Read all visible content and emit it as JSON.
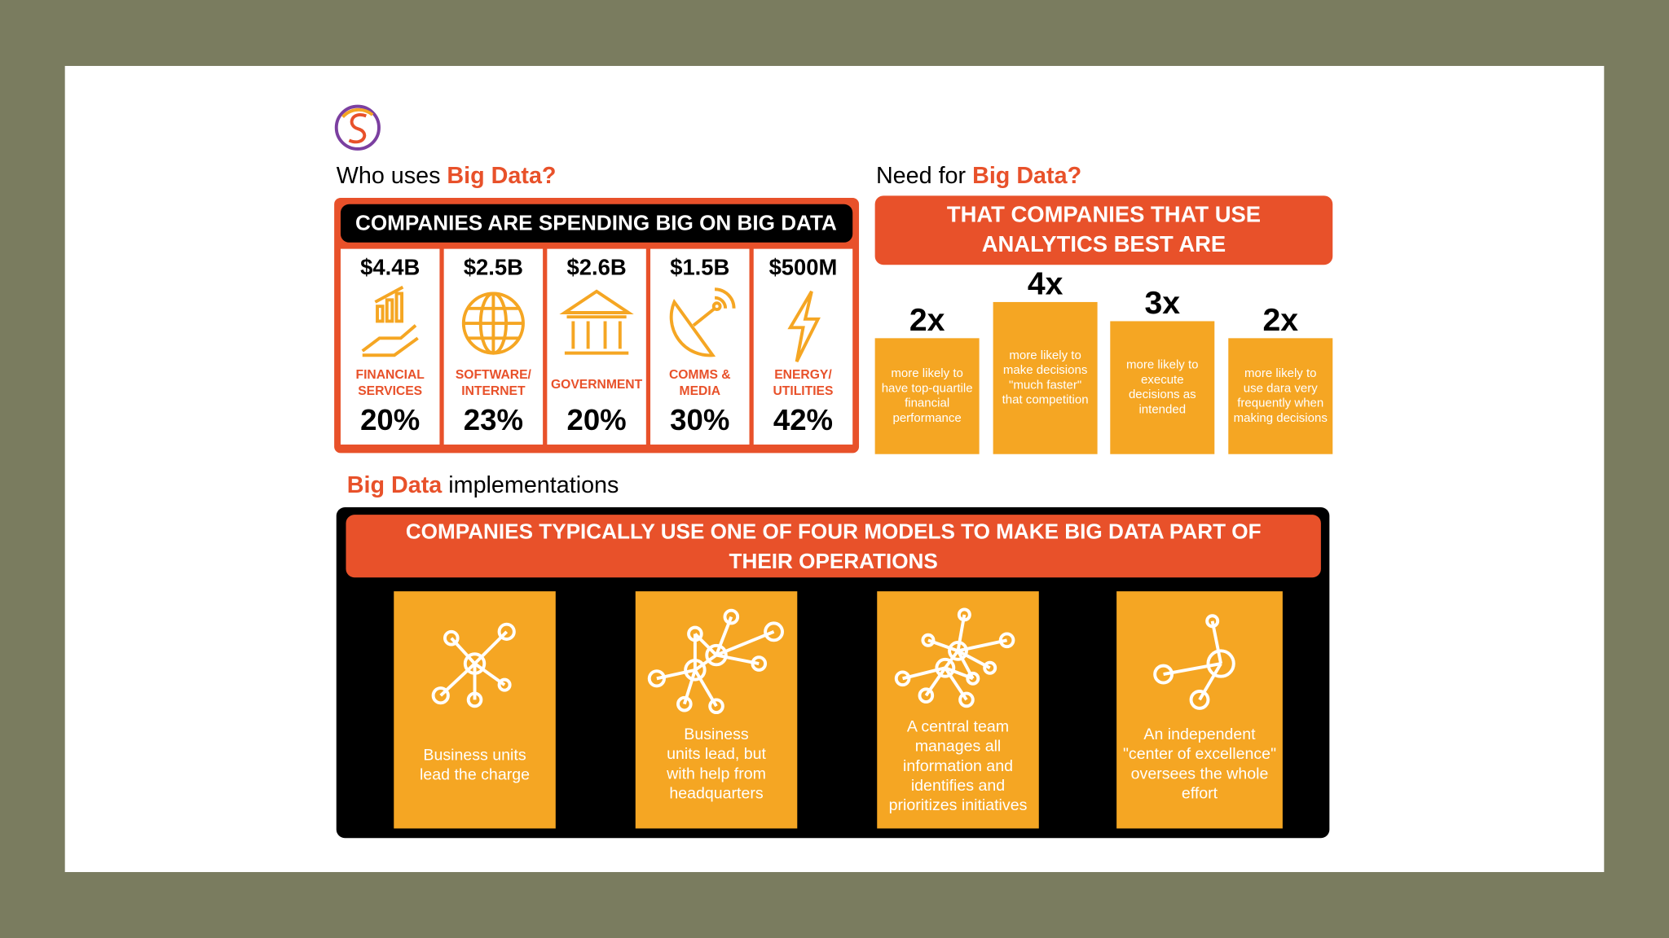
{
  "section1": {
    "heading_prefix": "Who uses",
    "heading_highlight": "Big Data?",
    "banner": "COMPANIES ARE SPENDING BIG ON BIG DATA",
    "sectors": [
      {
        "amount": "$4.4B",
        "name": [
          "FINANCIAL",
          "SERVICES"
        ],
        "share": "20%"
      },
      {
        "amount": "$2.5B",
        "name": [
          "SOFTWARE/",
          "INTERNET"
        ],
        "share": "23%"
      },
      {
        "amount": "$2.6B",
        "name": [
          "GOVERNMENT"
        ],
        "share": "20%"
      },
      {
        "amount": "$1.5B",
        "name": [
          "COMMS &",
          "MEDIA"
        ],
        "share": "30%"
      },
      {
        "amount": "$500M",
        "name": [
          "ENERGY/",
          "UTILITIES"
        ],
        "share": "42%"
      }
    ]
  },
  "section2": {
    "heading_prefix": "Need for",
    "heading_highlight": "Big Data?",
    "banner": [
      "THAT COMPANIES THAT USE",
      "ANALYTICS BEST ARE"
    ],
    "items": [
      {
        "multiplier": "2x",
        "text": [
          "more likely to",
          "have top-quartile",
          "financial",
          "performance"
        ]
      },
      {
        "multiplier": "4x",
        "text": [
          "more likely to",
          "make decisions",
          "\"much faster\"",
          "that competition"
        ]
      },
      {
        "multiplier": "3x",
        "text": [
          "more likely to",
          "execute",
          "decisions as",
          "intended"
        ]
      },
      {
        "multiplier": "2x",
        "text": [
          "more likely to",
          "use dara very",
          "frequently when",
          "making decisions"
        ]
      }
    ]
  },
  "section3": {
    "heading_highlight": "Big Data",
    "heading_suffix": "implementations",
    "banner": [
      "COMPANIES TYPICALLY USE ONE OF FOUR MODELS TO MAKE BIG DATA PART OF",
      "THEIR OPERATIONS"
    ],
    "models": [
      {
        "text": [
          "Business units",
          "lead the charge"
        ]
      },
      {
        "text": [
          "Business",
          "units lead, but",
          "with help from",
          "headquarters"
        ]
      },
      {
        "text": [
          "A central team",
          "manages all",
          "information and",
          "identifies and",
          "prioritizes initiatives"
        ]
      },
      {
        "text": [
          "An independent",
          "\"center of excellence\"",
          "oversees the whole",
          "effort"
        ]
      }
    ]
  }
}
